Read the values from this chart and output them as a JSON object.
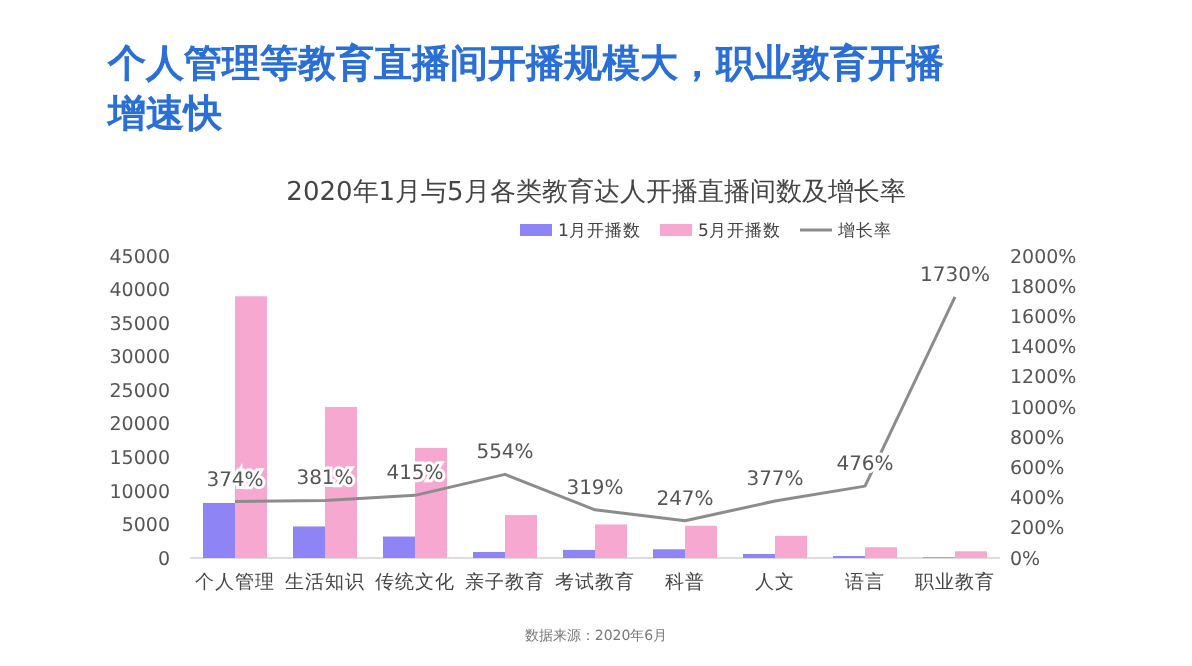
{
  "chart_data": {
    "type": "bar",
    "title": "个人管理等教育直播间开播规模大，职业教育开播增速快",
    "subtitle": "2020年1月与5月各类教育达人开播直播间数及增长率",
    "categories": [
      "个人管理",
      "生活知识",
      "传统文化",
      "亲子教育",
      "考试教育",
      "科普",
      "人文",
      "语言",
      "职业教育"
    ],
    "series": [
      {
        "name": "1月开播数",
        "color": "#8f84f5",
        "values": [
          8200,
          4700,
          3200,
          900,
          1200,
          1300,
          600,
          300,
          100
        ]
      },
      {
        "name": "5月开播数",
        "color": "#f7a8d0",
        "values": [
          39000,
          22500,
          16400,
          6400,
          5000,
          4800,
          3300,
          1600,
          1000
        ]
      },
      {
        "name": "增长率",
        "type": "line",
        "axis": "y2",
        "color": "#8c8c8c",
        "values": [
          374,
          381,
          415,
          554,
          319,
          247,
          377,
          476,
          1730
        ],
        "value_labels": [
          "374%",
          "381%",
          "415%",
          "554%",
          "319%",
          "247%",
          "377%",
          "476%",
          "1730%"
        ]
      }
    ],
    "ylim": [
      0,
      45000
    ],
    "yticks": [
      0,
      5000,
      10000,
      15000,
      20000,
      25000,
      30000,
      35000,
      40000,
      45000
    ],
    "y2lim": [
      0,
      2000
    ],
    "y2ticks": [
      {
        "value": 0,
        "label": "0%"
      },
      {
        "value": 200,
        "label": "200%"
      },
      {
        "value": 400,
        "label": "400%"
      },
      {
        "value": 600,
        "label": "600%"
      },
      {
        "value": 800,
        "label": "800%"
      },
      {
        "value": 1000,
        "label": "1000%"
      },
      {
        "value": 1200,
        "label": "1200%"
      },
      {
        "value": 1400,
        "label": "1400%"
      },
      {
        "value": 1600,
        "label": "1600%"
      },
      {
        "value": 1800,
        "label": "1800%"
      },
      {
        "value": 2000,
        "label": "2000%"
      }
    ],
    "legend": "top",
    "grid": false,
    "annotations": [
      "数据来源：2020年6月"
    ]
  }
}
